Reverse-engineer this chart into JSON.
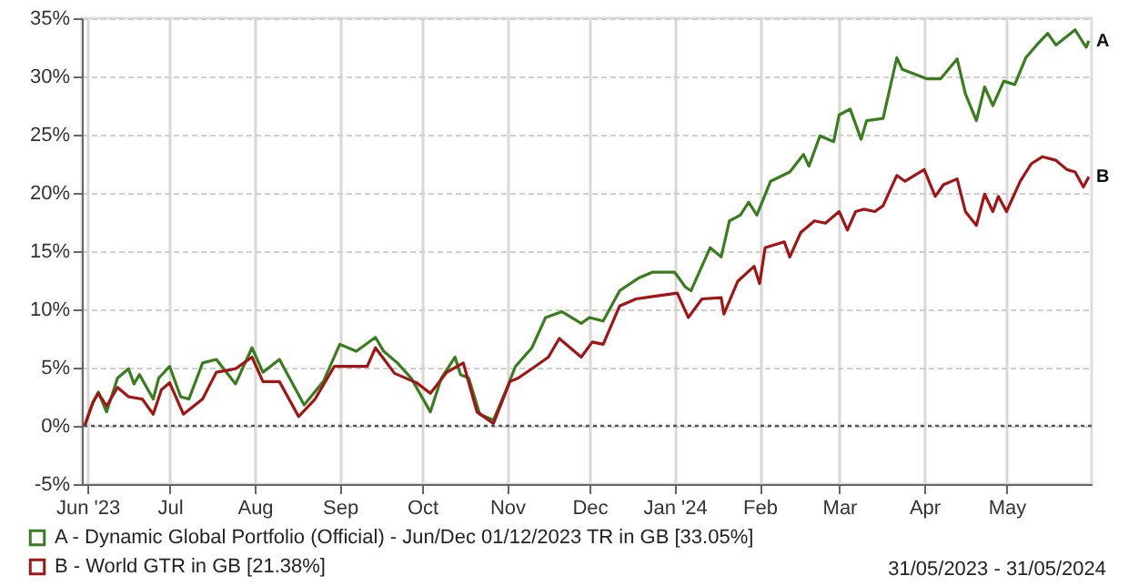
{
  "chart_data": {
    "type": "line",
    "xlim": [
      "2023-05-30",
      "2024-06-01"
    ],
    "xticks": [
      {
        "value": "2023-06-01",
        "label": "Jun '23"
      },
      {
        "value": "2023-07-01",
        "label": "Jul"
      },
      {
        "value": "2023-08-01",
        "label": "Aug"
      },
      {
        "value": "2023-09-01",
        "label": "Sep"
      },
      {
        "value": "2023-10-01",
        "label": "Oct"
      },
      {
        "value": "2023-11-01",
        "label": "Nov"
      },
      {
        "value": "2023-12-01",
        "label": "Dec"
      },
      {
        "value": "2024-01-01",
        "label": "Jan '24"
      },
      {
        "value": "2024-02-01",
        "label": "Feb"
      },
      {
        "value": "2024-03-01",
        "label": "Mar"
      },
      {
        "value": "2024-04-01",
        "label": "Apr"
      },
      {
        "value": "2024-05-01",
        "label": "May"
      }
    ],
    "ylim": [
      -5,
      35
    ],
    "yticks": [
      {
        "value": -5,
        "label": "-5%"
      },
      {
        "value": 0,
        "label": "0%"
      },
      {
        "value": 5,
        "label": "5%"
      },
      {
        "value": 10,
        "label": "10%"
      },
      {
        "value": 15,
        "label": "15%"
      },
      {
        "value": 20,
        "label": "20%"
      },
      {
        "value": 25,
        "label": "25%"
      },
      {
        "value": 30,
        "label": "30%"
      },
      {
        "value": 35,
        "label": "35%"
      }
    ],
    "grid": true,
    "legend": "bottom",
    "ref_lines": [
      {
        "axis": "y",
        "value": 0,
        "line_style": "dotted",
        "color": "#555555"
      }
    ],
    "series": [
      {
        "name": "A - Dynamic Global Portfolio (Official) - Jun/Dec 01/12/2023 TR in GB [33.05%]",
        "color": "#3a7d1e",
        "x": [
          "2023-05-31",
          "2023-06-03",
          "2023-06-05",
          "2023-06-08",
          "2023-06-12",
          "2023-06-16",
          "2023-06-18",
          "2023-06-20",
          "2023-06-25",
          "2023-06-27",
          "2023-07-01",
          "2023-07-05",
          "2023-07-08",
          "2023-07-13",
          "2023-07-18",
          "2023-07-25",
          "2023-07-31",
          "2023-08-04",
          "2023-08-10",
          "2023-08-19",
          "2023-08-26",
          "2023-09-01",
          "2023-09-07",
          "2023-09-14",
          "2023-09-17",
          "2023-09-22",
          "2023-09-27",
          "2023-10-04",
          "2023-10-08",
          "2023-10-13",
          "2023-10-15",
          "2023-10-18",
          "2023-10-22",
          "2023-10-27",
          "2023-11-01",
          "2023-11-04",
          "2023-11-10",
          "2023-11-15",
          "2023-11-21",
          "2023-11-28",
          "2023-12-01",
          "2023-12-06",
          "2023-12-12",
          "2023-12-19",
          "2023-12-24",
          "2024-01-01",
          "2024-01-05",
          "2024-01-07",
          "2024-01-14",
          "2024-01-18",
          "2024-01-21",
          "2024-01-25",
          "2024-01-28",
          "2024-01-31",
          "2024-02-05",
          "2024-02-12",
          "2024-02-17",
          "2024-02-19",
          "2024-02-23",
          "2024-02-28",
          "2024-03-01",
          "2024-03-05",
          "2024-03-09",
          "2024-03-11",
          "2024-03-17",
          "2024-03-22",
          "2024-03-24",
          "2024-04-02",
          "2024-04-07",
          "2024-04-13",
          "2024-04-16",
          "2024-04-20",
          "2024-04-23",
          "2024-04-26",
          "2024-04-30",
          "2024-05-04",
          "2024-05-08",
          "2024-05-12",
          "2024-05-16",
          "2024-05-19",
          "2024-05-26",
          "2024-05-30",
          "2024-05-31"
        ],
        "values": [
          0,
          2.0,
          2.9,
          1.2,
          4.1,
          4.9,
          3.6,
          4.4,
          2.3,
          4.1,
          5.1,
          2.5,
          2.3,
          5.4,
          5.7,
          3.6,
          6.7,
          4.6,
          5.7,
          1.8,
          3.8,
          7.0,
          6.4,
          7.6,
          6.4,
          5.4,
          4.1,
          1.2,
          4.1,
          5.9,
          4.4,
          4.1,
          1.0,
          0.5,
          3.3,
          5.1,
          6.7,
          9.3,
          9.8,
          8.8,
          9.3,
          9.0,
          11.6,
          12.7,
          13.2,
          13.2,
          11.9,
          11.6,
          15.3,
          14.5,
          17.6,
          18.1,
          19.2,
          18.1,
          21.0,
          21.8,
          23.3,
          22.3,
          24.9,
          24.4,
          26.7,
          27.2,
          24.6,
          26.2,
          26.4,
          31.6,
          30.6,
          29.8,
          29.8,
          31.5,
          28.5,
          26.2,
          29.1,
          27.5,
          29.6,
          29.3,
          31.6,
          32.7,
          33.7,
          32.7,
          34.0,
          32.5,
          33.05
        ]
      },
      {
        "name": "B - World GTR in GB [21.38%]",
        "color": "#a31515",
        "x": [
          "2023-05-31",
          "2023-06-03",
          "2023-06-05",
          "2023-06-08",
          "2023-06-12",
          "2023-06-16",
          "2023-06-21",
          "2023-06-25",
          "2023-06-28",
          "2023-07-01",
          "2023-07-06",
          "2023-07-13",
          "2023-07-18",
          "2023-07-25",
          "2023-07-31",
          "2023-08-04",
          "2023-08-10",
          "2023-08-17",
          "2023-08-23",
          "2023-08-30",
          "2023-09-01",
          "2023-09-11",
          "2023-09-14",
          "2023-09-21",
          "2023-09-29",
          "2023-10-04",
          "2023-10-10",
          "2023-10-16",
          "2023-10-21",
          "2023-10-27",
          "2023-11-02",
          "2023-11-05",
          "2023-11-10",
          "2023-11-16",
          "2023-11-20",
          "2023-11-28",
          "2023-12-02",
          "2023-12-06",
          "2023-12-12",
          "2023-12-18",
          "2023-12-24",
          "2024-01-02",
          "2024-01-06",
          "2024-01-11",
          "2024-01-18",
          "2024-01-19",
          "2024-01-24",
          "2024-01-30",
          "2024-02-01",
          "2024-02-03",
          "2024-02-10",
          "2024-02-12",
          "2024-02-16",
          "2024-02-21",
          "2024-02-25",
          "2024-03-01",
          "2024-03-04",
          "2024-03-07",
          "2024-03-10",
          "2024-03-14",
          "2024-03-17",
          "2024-03-22",
          "2024-03-25",
          "2024-04-01",
          "2024-04-05",
          "2024-04-08",
          "2024-04-13",
          "2024-04-16",
          "2024-04-20",
          "2024-04-23",
          "2024-04-26",
          "2024-04-28",
          "2024-05-01",
          "2024-05-06",
          "2024-05-10",
          "2024-05-14",
          "2024-05-19",
          "2024-05-23",
          "2024-05-26",
          "2024-05-29",
          "2024-05-31"
        ],
        "values": [
          0,
          2.0,
          2.8,
          1.7,
          3.3,
          2.5,
          2.3,
          1.0,
          3.1,
          3.7,
          1.0,
          2.3,
          4.6,
          4.9,
          5.9,
          3.8,
          3.8,
          0.8,
          2.3,
          5.1,
          5.1,
          5.1,
          6.7,
          4.5,
          3.7,
          2.8,
          4.6,
          5.4,
          1.2,
          0.2,
          3.8,
          4.1,
          4.9,
          5.9,
          7.5,
          5.9,
          7.2,
          7.0,
          10.3,
          10.9,
          11.1,
          11.4,
          9.3,
          10.9,
          11.0,
          9.6,
          12.4,
          13.7,
          12.2,
          15.3,
          15.8,
          14.5,
          16.6,
          17.6,
          17.4,
          18.4,
          16.8,
          18.4,
          18.6,
          18.4,
          18.9,
          21.5,
          21.0,
          22.0,
          19.7,
          20.7,
          21.2,
          18.4,
          17.2,
          19.9,
          18.4,
          19.7,
          18.4,
          21.0,
          22.5,
          23.1,
          22.8,
          22.0,
          21.8,
          20.5,
          21.38
        ]
      }
    ],
    "annotations": [
      {
        "text": "A",
        "x": "2024-05-31",
        "y": 33.05
      },
      {
        "text": "B",
        "x": "2024-05-31",
        "y": 21.38
      },
      "31/05/2023 - 31/05/2024"
    ]
  }
}
